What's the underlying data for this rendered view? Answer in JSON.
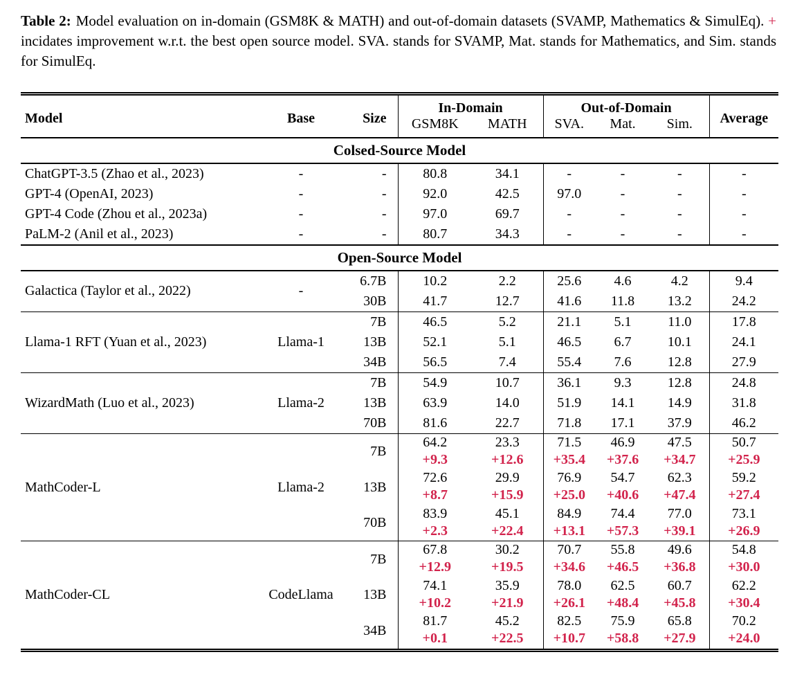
{
  "colors": {
    "accent_red": "#d2234c"
  },
  "caption": {
    "label": "Table 2:",
    "text_before_plus": "Model evaluation on in-domain (GSM8K & MATH) and out-of-domain datasets (SVAMP, Mathematics & SimulEq).",
    "plus": "+",
    "text_after_plus": "incidates improvement w.r.t. the best open source model. SVA. stands for SVAMP, Mat. stands for Mathematics, and Sim. stands for SimulEq."
  },
  "table": {
    "headers": {
      "model": "Model",
      "base": "Base",
      "size": "Size",
      "in_domain": "In-Domain",
      "out_of_domain": "Out-of-Domain",
      "gsm8k": "GSM8K",
      "math": "MATH",
      "sva": "SVA.",
      "mat": "Mat.",
      "sim": "Sim.",
      "average": "Average"
    },
    "sections": [
      {
        "title": "Colsed-Source Model",
        "rule_between_groups": false,
        "groups": [
          {
            "model": "ChatGPT-3.5 (Zhao et al., 2023)",
            "base": "-",
            "sizes": [
              {
                "size": "-",
                "values": [
                  "80.8",
                  "34.1",
                  "-",
                  "-",
                  "-",
                  "-"
                ]
              }
            ]
          },
          {
            "model": "GPT-4 (OpenAI, 2023)",
            "base": "-",
            "sizes": [
              {
                "size": "-",
                "values": [
                  "92.0",
                  "42.5",
                  "97.0",
                  "-",
                  "-",
                  "-"
                ]
              }
            ]
          },
          {
            "model": "GPT-4 Code (Zhou et al., 2023a)",
            "base": "-",
            "sizes": [
              {
                "size": "-",
                "values": [
                  "97.0",
                  "69.7",
                  "-",
                  "-",
                  "-",
                  "-"
                ]
              }
            ]
          },
          {
            "model": "PaLM-2 (Anil et al., 2023)",
            "base": "-",
            "sizes": [
              {
                "size": "-",
                "values": [
                  "80.7",
                  "34.3",
                  "-",
                  "-",
                  "-",
                  "-"
                ]
              }
            ]
          }
        ]
      },
      {
        "title": "Open-Source Model",
        "rule_between_groups": true,
        "groups": [
          {
            "model": "Galactica (Taylor et al., 2022)",
            "base": "-",
            "sizes": [
              {
                "size": "6.7B",
                "values": [
                  "10.2",
                  "2.2",
                  "25.6",
                  "4.6",
                  "4.2",
                  "9.4"
                ]
              },
              {
                "size": "30B",
                "values": [
                  "41.7",
                  "12.7",
                  "41.6",
                  "11.8",
                  "13.2",
                  "24.2"
                ]
              }
            ]
          },
          {
            "model": "Llama-1 RFT (Yuan et al., 2023)",
            "base": "Llama-1",
            "sizes": [
              {
                "size": "7B",
                "values": [
                  "46.5",
                  "5.2",
                  "21.1",
                  "5.1",
                  "11.0",
                  "17.8"
                ]
              },
              {
                "size": "13B",
                "values": [
                  "52.1",
                  "5.1",
                  "46.5",
                  "6.7",
                  "10.1",
                  "24.1"
                ]
              },
              {
                "size": "34B",
                "values": [
                  "56.5",
                  "7.4",
                  "55.4",
                  "7.6",
                  "12.8",
                  "27.9"
                ]
              }
            ]
          },
          {
            "model": "WizardMath (Luo et al., 2023)",
            "base": "Llama-2",
            "sizes": [
              {
                "size": "7B",
                "values": [
                  "54.9",
                  "10.7",
                  "36.1",
                  "9.3",
                  "12.8",
                  "24.8"
                ]
              },
              {
                "size": "13B",
                "values": [
                  "63.9",
                  "14.0",
                  "51.9",
                  "14.1",
                  "14.9",
                  "31.8"
                ]
              },
              {
                "size": "70B",
                "values": [
                  "81.6",
                  "22.7",
                  "71.8",
                  "17.1",
                  "37.9",
                  "46.2"
                ]
              }
            ]
          },
          {
            "model": "MathCoder-L",
            "base": "Llama-2",
            "sizes": [
              {
                "size": "7B",
                "values": [
                  "64.2",
                  "23.3",
                  "71.5",
                  "46.9",
                  "47.5",
                  "50.7"
                ],
                "plus": [
                  "+9.3",
                  "+12.6",
                  "+35.4",
                  "+37.6",
                  "+34.7",
                  "+25.9"
                ]
              },
              {
                "size": "13B",
                "values": [
                  "72.6",
                  "29.9",
                  "76.9",
                  "54.7",
                  "62.3",
                  "59.2"
                ],
                "plus": [
                  "+8.7",
                  "+15.9",
                  "+25.0",
                  "+40.6",
                  "+47.4",
                  "+27.4"
                ]
              },
              {
                "size": "70B",
                "values": [
                  "83.9",
                  "45.1",
                  "84.9",
                  "74.4",
                  "77.0",
                  "73.1"
                ],
                "plus": [
                  "+2.3",
                  "+22.4",
                  "+13.1",
                  "+57.3",
                  "+39.1",
                  "+26.9"
                ]
              }
            ]
          },
          {
            "model": "MathCoder-CL",
            "base": "CodeLlama",
            "sizes": [
              {
                "size": "7B",
                "values": [
                  "67.8",
                  "30.2",
                  "70.7",
                  "55.8",
                  "49.6",
                  "54.8"
                ],
                "plus": [
                  "+12.9",
                  "+19.5",
                  "+34.6",
                  "+46.5",
                  "+36.8",
                  "+30.0"
                ]
              },
              {
                "size": "13B",
                "values": [
                  "74.1",
                  "35.9",
                  "78.0",
                  "62.5",
                  "60.7",
                  "62.2"
                ],
                "plus": [
                  "+10.2",
                  "+21.9",
                  "+26.1",
                  "+48.4",
                  "+45.8",
                  "+30.4"
                ]
              },
              {
                "size": "34B",
                "values": [
                  "81.7",
                  "45.2",
                  "82.5",
                  "75.9",
                  "65.8",
                  "70.2"
                ],
                "plus": [
                  "+0.1",
                  "+22.5",
                  "+10.7",
                  "+58.8",
                  "+27.9",
                  "+24.0"
                ]
              }
            ]
          }
        ]
      }
    ]
  }
}
